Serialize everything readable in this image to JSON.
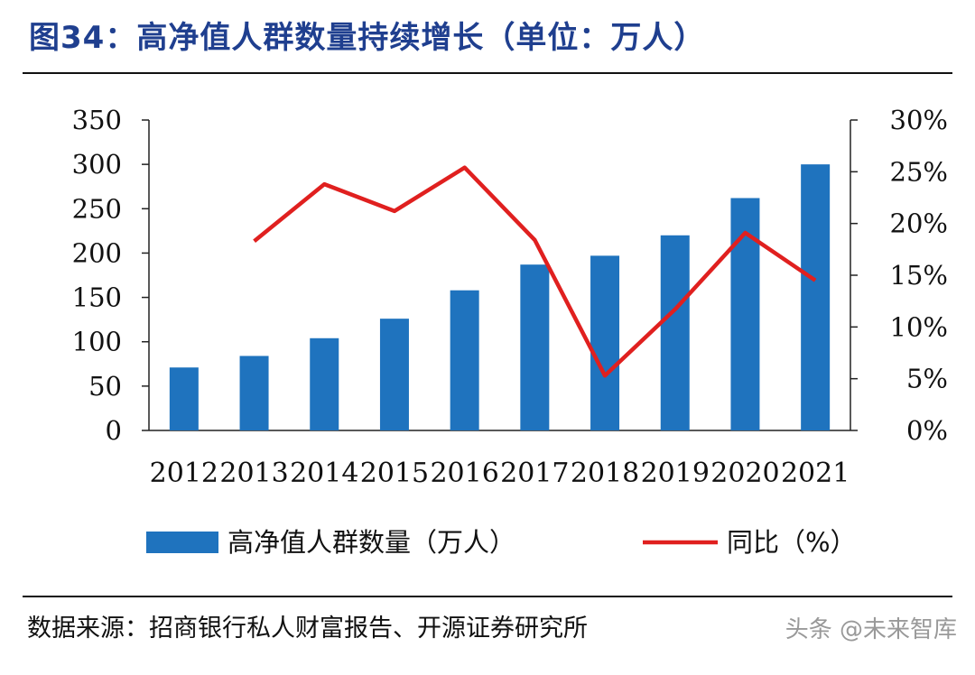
{
  "header": {
    "title": "图34：高净值人群数量持续增长（单位：万人）"
  },
  "chart_data": {
    "type": "bar",
    "categories": [
      "2012",
      "2013",
      "2014",
      "2015",
      "2016",
      "2017",
      "2018",
      "2019",
      "2020",
      "2021"
    ],
    "series": [
      {
        "name": "高净值人群数量（万人）",
        "type": "bar",
        "axis": "left",
        "values": [
          71,
          84,
          104,
          126,
          158,
          187,
          197,
          220,
          262,
          300
        ]
      },
      {
        "name": "同比（%）",
        "type": "line",
        "axis": "right",
        "values": [
          null,
          18.3,
          23.8,
          21.2,
          25.4,
          18.4,
          5.3,
          11.7,
          19.1,
          14.5
        ]
      }
    ],
    "left_axis": {
      "ylim": [
        0,
        350
      ],
      "ticks": [
        "0",
        "50",
        "100",
        "150",
        "200",
        "250",
        "300",
        "350"
      ]
    },
    "right_axis": {
      "ylim": [
        0,
        30
      ],
      "ticks": [
        "0%",
        "5%",
        "10%",
        "15%",
        "20%",
        "25%",
        "30%"
      ]
    },
    "legend_position": "bottom",
    "grid": false,
    "colors": {
      "bar": "#1f73be",
      "line": "#e0201f"
    }
  },
  "footer": {
    "source": "数据来源：招商银行私人财富报告、开源证券研究所"
  },
  "watermark": {
    "text": "头条 @未来智库"
  }
}
